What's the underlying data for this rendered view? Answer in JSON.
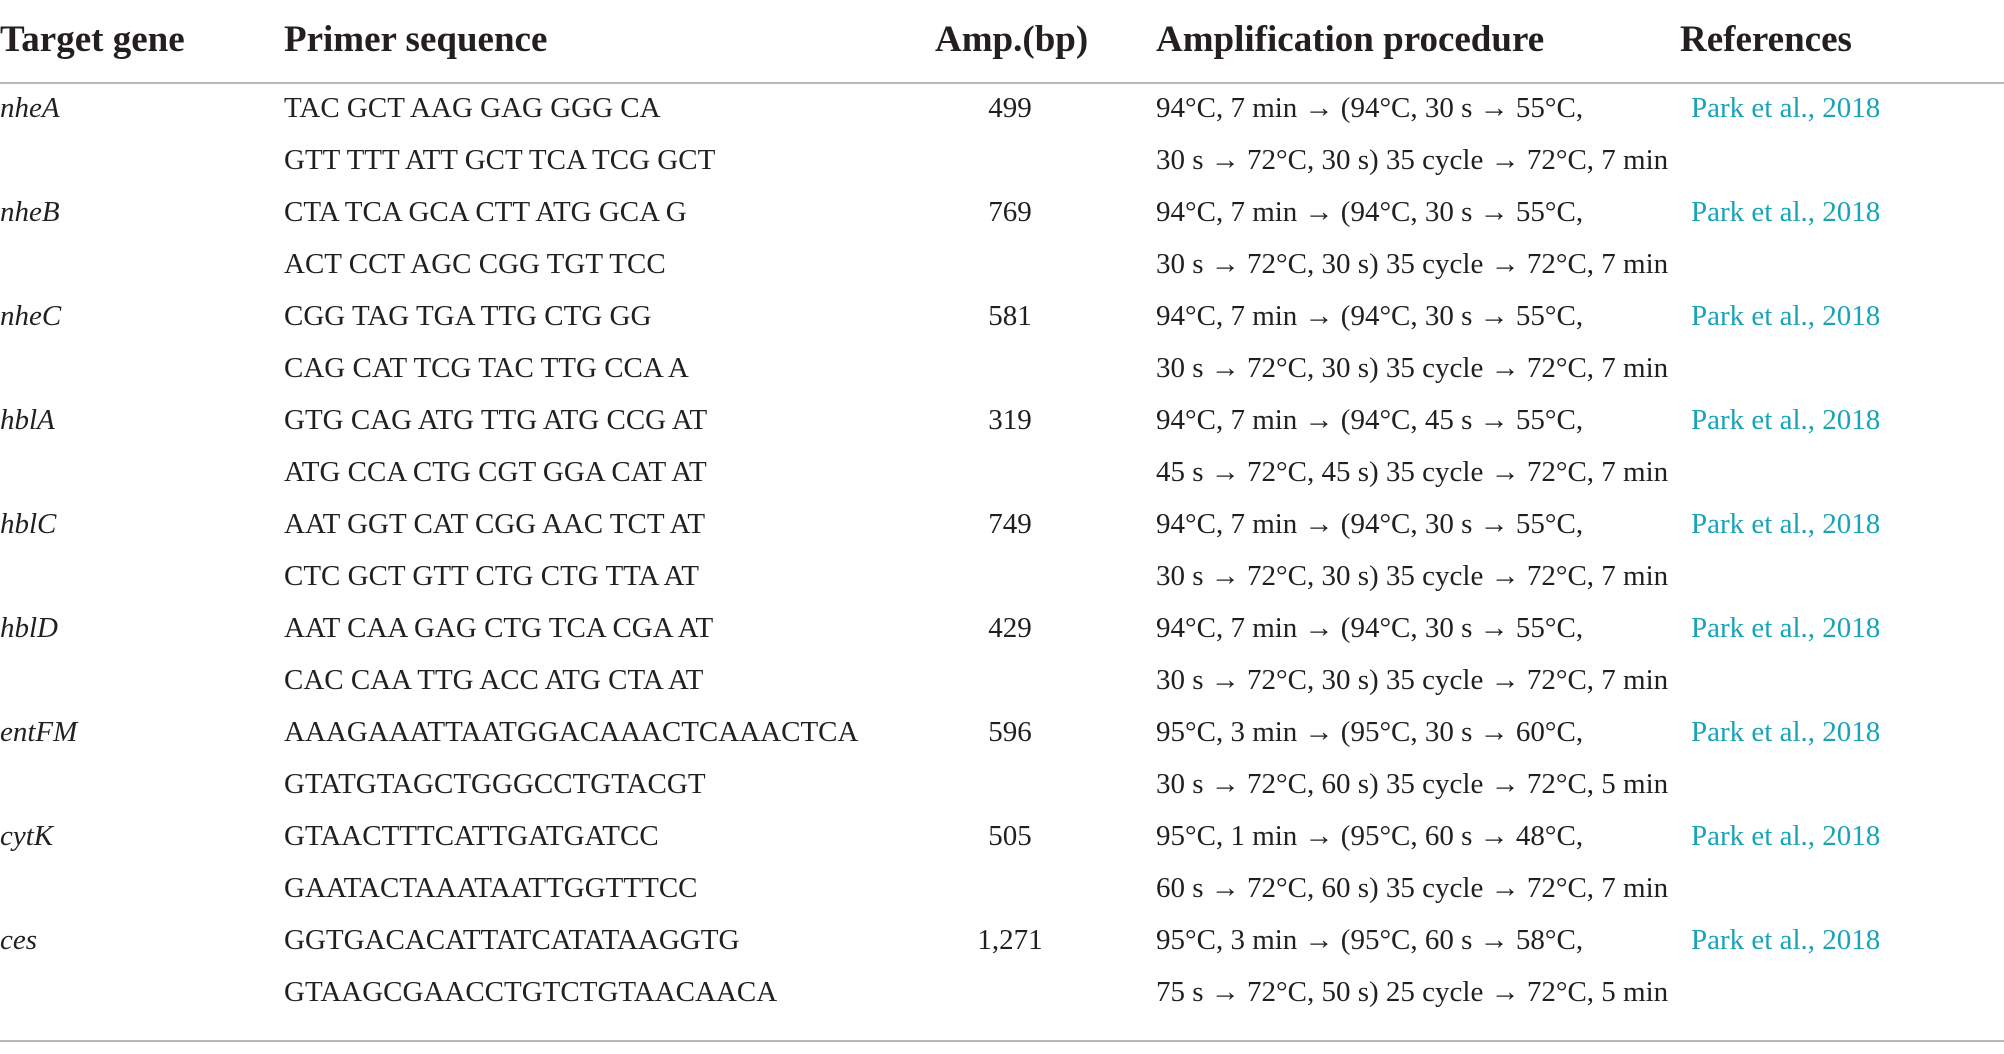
{
  "headers": {
    "gene": "Target gene",
    "primer": "Primer sequence",
    "amp": "Amp.(bp)",
    "procedure": "Amplification procedure",
    "references": "References"
  },
  "rows": [
    {
      "gene": "nheA",
      "primer_1": "TAC GCT AAG GAG GGG CA",
      "primer_2": "GTT TTT ATT GCT TCA TCG GCT",
      "amp": "499",
      "proc_1": "94°C, 7 min → (94°C, 30 s → 55°C,",
      "proc_2": "30 s → 72°C, 30 s) 35 cycle → 72°C, 7 min",
      "ref": "Park et al., 2018"
    },
    {
      "gene": "nheB",
      "primer_1": "CTA TCA GCA CTT ATG GCA G",
      "primer_2": "ACT CCT AGC CGG TGT TCC",
      "amp": "769",
      "proc_1": "94°C, 7 min → (94°C, 30 s → 55°C,",
      "proc_2": "30 s → 72°C, 30 s) 35 cycle → 72°C, 7 min",
      "ref": "Park et al., 2018"
    },
    {
      "gene": "nheC",
      "primer_1": "CGG TAG TGA TTG CTG GG",
      "primer_2": "CAG CAT TCG TAC TTG CCA A",
      "amp": "581",
      "proc_1": "94°C, 7 min → (94°C, 30 s → 55°C,",
      "proc_2": "30 s → 72°C, 30 s) 35 cycle → 72°C, 7 min",
      "ref": "Park et al., 2018"
    },
    {
      "gene": "hblA",
      "primer_1": "GTG CAG ATG TTG ATG CCG AT",
      "primer_2": "ATG CCA CTG CGT GGA CAT AT",
      "amp": "319",
      "proc_1": "94°C, 7 min → (94°C, 45 s → 55°C,",
      "proc_2": "45 s → 72°C, 45 s) 35 cycle → 72°C, 7 min",
      "ref": "Park et al., 2018"
    },
    {
      "gene": "hblC",
      "primer_1": "AAT GGT CAT CGG AAC TCT AT",
      "primer_2": "CTC GCT GTT CTG CTG TTA AT",
      "amp": "749",
      "proc_1": "94°C, 7 min → (94°C, 30 s → 55°C,",
      "proc_2": "30 s → 72°C, 30 s) 35 cycle → 72°C, 7 min",
      "ref": "Park et al., 2018"
    },
    {
      "gene": "hblD",
      "primer_1": "AAT CAA GAG CTG TCA CGA AT",
      "primer_2": "CAC CAA TTG ACC ATG CTA AT",
      "amp": "429",
      "proc_1": "94°C, 7 min → (94°C, 30 s → 55°C,",
      "proc_2": "30 s → 72°C, 30 s) 35 cycle → 72°C, 7 min",
      "ref": "Park et al., 2018"
    },
    {
      "gene": "entFM",
      "primer_1": "AAAGAAATTAATGGACAAACTCAAACTCA",
      "primer_2": "GTATGTAGCTGGGCCTGTACGT",
      "amp": "596",
      "proc_1": "95°C, 3 min → (95°C, 30 s → 60°C,",
      "proc_2": "30 s → 72°C, 60 s) 35 cycle → 72°C, 5 min",
      "ref": "Park et al., 2018"
    },
    {
      "gene": "cytK",
      "primer_1": "GTAACTTTCATTGATGATCC",
      "primer_2": "GAATACTAAATAATTGGTTTCC",
      "amp": "505",
      "proc_1": "95°C, 1 min → (95°C, 60 s → 48°C,",
      "proc_2": "60 s → 72°C, 60 s) 35 cycle → 72°C, 7 min",
      "ref": "Park et al., 2018"
    },
    {
      "gene": "ces",
      "primer_1": "GGTGACACATTATCATATAAGGTG",
      "primer_2": "GTAAGCGAACCTGTCTGTAACAACA",
      "amp": "1,271",
      "proc_1": "95°C, 3 min → (95°C, 60 s → 58°C,",
      "proc_2": "75 s → 72°C, 50 s) 25 cycle → 72°C, 5 min",
      "ref": "Park et al., 2018"
    }
  ]
}
